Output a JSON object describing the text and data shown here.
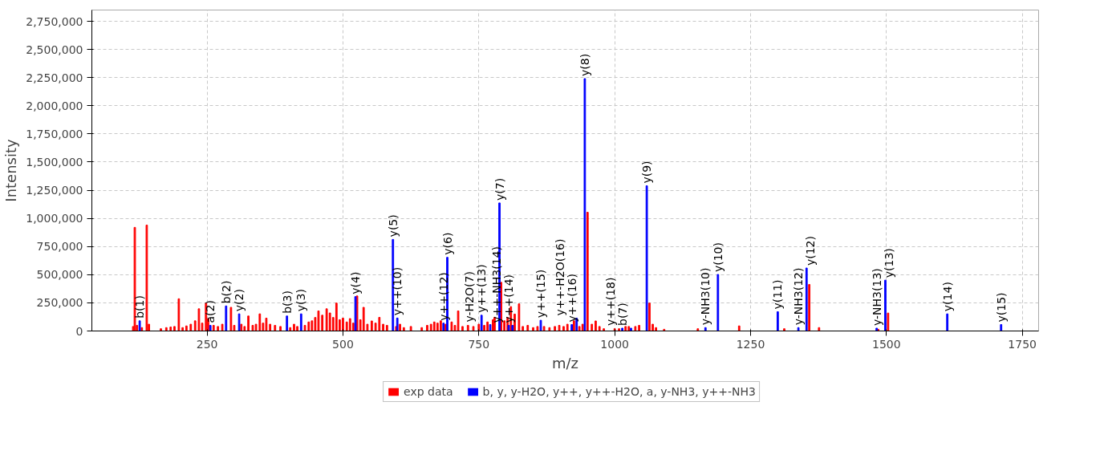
{
  "chart_data": {
    "type": "bar",
    "xlabel": "m/z",
    "ylabel": "Intensity",
    "xlim": [
      38,
      1780
    ],
    "ylim": [
      0,
      2850000
    ],
    "xticks": [
      250,
      500,
      750,
      1000,
      1250,
      1500,
      1750
    ],
    "yticks": [
      {
        "value": 0,
        "label": "0"
      },
      {
        "value": 250000,
        "label": "250,000"
      },
      {
        "value": 500000,
        "label": "500,000"
      },
      {
        "value": 750000,
        "label": "750,000"
      },
      {
        "value": 1000000,
        "label": "1,000,000"
      },
      {
        "value": 1250000,
        "label": "1,250,000"
      },
      {
        "value": 1500000,
        "label": "1,500,000"
      },
      {
        "value": 1750000,
        "label": "1,750,000"
      },
      {
        "value": 2000000,
        "label": "2,000,000"
      },
      {
        "value": 2250000,
        "label": "2,250,000"
      },
      {
        "value": 2500000,
        "label": "2,500,000"
      },
      {
        "value": 2750000,
        "label": "2,750,000"
      }
    ],
    "grid": true,
    "legend": "bottom",
    "series": [
      {
        "name": "exp data",
        "color": "#ff0000",
        "x": [
          114,
          117,
          121,
          130,
          139,
          143,
          165,
          175,
          183,
          190,
          198,
          205,
          212,
          220,
          228,
          235,
          241,
          248,
          252,
          262,
          270,
          278,
          294,
          300,
          313,
          319,
          326,
          334,
          340,
          347,
          353,
          359,
          366,
          375,
          385,
          403,
          410,
          416,
          430,
          437,
          443,
          449,
          455,
          462,
          470,
          476,
          482,
          488,
          494,
          500,
          507,
          513,
          519,
          526,
          532,
          538,
          545,
          553,
          560,
          567,
          574,
          581,
          598,
          605,
          612,
          625,
          645,
          655,
          662,
          668,
          674,
          680,
          689,
          700,
          706,
          712,
          720,
          730,
          740,
          750,
          760,
          766,
          776,
          779,
          791,
          797,
          803,
          809,
          816,
          824,
          831,
          840,
          850,
          858,
          870,
          880,
          890,
          898,
          906,
          913,
          925,
          935,
          941,
          950,
          958,
          965,
          972,
          980,
          1000,
          1008,
          1020,
          1026,
          1038,
          1045,
          1064,
          1070,
          1076,
          1091,
          1153,
          1229,
          1312,
          1358,
          1376,
          1485,
          1503
        ],
        "values": [
          40000,
          920000,
          50000,
          30000,
          940000,
          60000,
          20000,
          30000,
          35000,
          40000,
          286000,
          30000,
          45000,
          60000,
          90000,
          197000,
          70000,
          248000,
          110000,
          50000,
          40000,
          60000,
          210000,
          50000,
          60000,
          40000,
          133000,
          50000,
          60000,
          152000,
          70000,
          114000,
          60000,
          50000,
          40000,
          30000,
          60000,
          40000,
          50000,
          80000,
          90000,
          120000,
          178000,
          140000,
          197000,
          160000,
          120000,
          248000,
          100000,
          114000,
          80000,
          110000,
          70000,
          311000,
          100000,
          210000,
          60000,
          89000,
          70000,
          121000,
          60000,
          50000,
          40000,
          60000,
          30000,
          40000,
          30000,
          50000,
          60000,
          80000,
          70000,
          90000,
          60000,
          80000,
          50000,
          178000,
          40000,
          50000,
          40000,
          60000,
          50000,
          80000,
          100000,
          121000,
          432000,
          90000,
          120000,
          216000,
          150000,
          241000,
          40000,
          50000,
          30000,
          40000,
          40000,
          30000,
          40000,
          50000,
          40000,
          60000,
          90000,
          40000,
          60000,
          1054000,
          60000,
          89000,
          40000,
          20000,
          20000,
          20000,
          40000,
          40000,
          40000,
          50000,
          248000,
          60000,
          30000,
          15000,
          20000,
          45000,
          20000,
          413000,
          30000,
          15000,
          159000
        ]
      },
      {
        "name": "b, y, y-H2O, y++, y++-H2O, a, y-NH3, y++-NH3",
        "color": "#0000ff",
        "x": [
          126,
          256,
          285,
          309,
          397,
          423,
          523,
          592,
          600,
          685,
          692,
          755,
          771,
          788,
          805,
          812,
          864,
          921,
          930,
          945,
          1014,
          1030,
          1059,
          1167,
          1190,
          1300,
          1338,
          1353,
          1482,
          1498,
          1612,
          1711
        ],
        "values": [
          90000,
          50000,
          222000,
          152000,
          133000,
          152000,
          305000,
          813000,
          115000,
          70000,
          654000,
          140000,
          57000,
          1137000,
          50000,
          50000,
          95000,
          57000,
          114000,
          2241000,
          25000,
          25000,
          1289000,
          30000,
          502000,
          171000,
          30000,
          559000,
          25000,
          451000,
          152000,
          57000
        ]
      }
    ],
    "annotations": [
      {
        "text": "b(1)",
        "x": 126,
        "y": 90000
      },
      {
        "text": "a(2)",
        "x": 256,
        "y": 50000
      },
      {
        "text": "b(2)",
        "x": 285,
        "y": 222000
      },
      {
        "text": "y(2)",
        "x": 309,
        "y": 152000
      },
      {
        "text": "b(3)",
        "x": 397,
        "y": 133000
      },
      {
        "text": "y(3)",
        "x": 423,
        "y": 152000
      },
      {
        "text": "y(4)",
        "x": 523,
        "y": 305000
      },
      {
        "text": "y(5)",
        "x": 592,
        "y": 813000
      },
      {
        "text": "y++(10)",
        "x": 600,
        "y": 115000
      },
      {
        "text": "y++(12)",
        "x": 685,
        "y": 70000
      },
      {
        "text": "y(6)",
        "x": 692,
        "y": 654000
      },
      {
        "text": "y++(13)",
        "x": 755,
        "y": 140000
      },
      {
        "text": "y-H2O(7)",
        "x": 771,
        "y": 57000
      },
      {
        "text": "y(7)",
        "x": 788,
        "y": 1137000
      },
      {
        "text": "y++(14)",
        "x": 805,
        "y": 50000
      },
      {
        "text": "y++-NH3(14)",
        "x": 812,
        "y": 50000
      },
      {
        "text": "y++(15)",
        "x": 864,
        "y": 95000
      },
      {
        "text": "y++(16)",
        "x": 921,
        "y": 57000
      },
      {
        "text": "y++-H2O(16)",
        "x": 930,
        "y": 114000
      },
      {
        "text": "y(8)",
        "x": 945,
        "y": 2241000
      },
      {
        "text": "b(7)",
        "x": 1014,
        "y": 25000
      },
      {
        "text": "y++(18)",
        "x": 1030,
        "y": 25000
      },
      {
        "text": "y(9)",
        "x": 1059,
        "y": 1289000
      },
      {
        "text": "y-NH3(10)",
        "x": 1167,
        "y": 30000
      },
      {
        "text": "y(10)",
        "x": 1190,
        "y": 502000
      },
      {
        "text": "y(11)",
        "x": 1300,
        "y": 171000
      },
      {
        "text": "y-NH3(12)",
        "x": 1338,
        "y": 30000
      },
      {
        "text": "y(12)",
        "x": 1353,
        "y": 559000
      },
      {
        "text": "y-NH3(13)",
        "x": 1482,
        "y": 25000
      },
      {
        "text": "y(13)",
        "x": 1498,
        "y": 451000
      },
      {
        "text": "y(14)",
        "x": 1612,
        "y": 152000
      },
      {
        "text": "y(15)",
        "x": 1711,
        "y": 57000
      }
    ]
  }
}
